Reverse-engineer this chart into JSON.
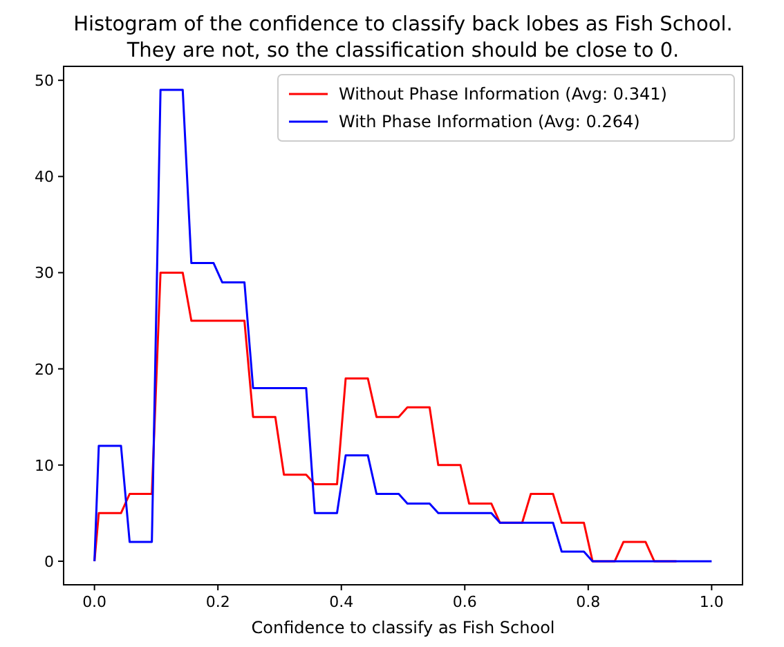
{
  "chart_data": {
    "type": "line",
    "title": "Histogram of the confidence to classify back lobes as Fish School.\nThey are not, so the classification should be close to 0.",
    "xlabel": "Confidence to classify as Fish School",
    "x": [
      0,
      0.007,
      0.043,
      0.057,
      0.093,
      0.107,
      0.143,
      0.157,
      0.193,
      0.207,
      0.243,
      0.257,
      0.293,
      0.307,
      0.343,
      0.357,
      0.393,
      0.407,
      0.443,
      0.457,
      0.493,
      0.507,
      0.543,
      0.557,
      0.593,
      0.607,
      0.643,
      0.657,
      0.693,
      0.707,
      0.743,
      0.757,
      0.793,
      0.807,
      0.843,
      0.857,
      0.893,
      0.907,
      0.943,
      0.957,
      0.993,
      1.0
    ],
    "series": [
      {
        "name": "Without Phase Information (Avg: 0.341)",
        "color": "#ff0000",
        "values": [
          0,
          5,
          5,
          7,
          7,
          30,
          30,
          25,
          25,
          25,
          25,
          15,
          15,
          9,
          9,
          8,
          8,
          19,
          19,
          15,
          15,
          16,
          16,
          10,
          10,
          6,
          6,
          4,
          4,
          7,
          7,
          4,
          4,
          0,
          0,
          2,
          2,
          0,
          0,
          null,
          null,
          null
        ]
      },
      {
        "name": "With Phase Information (Avg: 0.264)",
        "color": "#0000ff",
        "values": [
          0,
          12,
          12,
          2,
          2,
          49,
          49,
          31,
          31,
          29,
          29,
          18,
          18,
          18,
          18,
          5,
          5,
          11,
          11,
          7,
          7,
          6,
          6,
          5,
          5,
          5,
          5,
          4,
          4,
          4,
          4,
          1,
          1,
          0,
          0,
          0,
          0,
          0,
          0,
          0,
          0,
          0
        ]
      }
    ],
    "xlim": [
      -0.05,
      1.05
    ],
    "xticks": [
      {
        "value": 0,
        "label": "0.0"
      },
      {
        "value": 0.2,
        "label": "0.2"
      },
      {
        "value": 0.4,
        "label": "0.4"
      },
      {
        "value": 0.6,
        "label": "0.6"
      },
      {
        "value": 0.8,
        "label": "0.8"
      },
      {
        "value": 1,
        "label": "1.0"
      }
    ],
    "ylim": [
      -2.45,
      51.45
    ],
    "yticks": [
      0,
      10,
      20,
      30,
      40,
      50
    ],
    "legend": "top right",
    "grid": false,
    "marker": "none",
    "line_style": "solid"
  }
}
